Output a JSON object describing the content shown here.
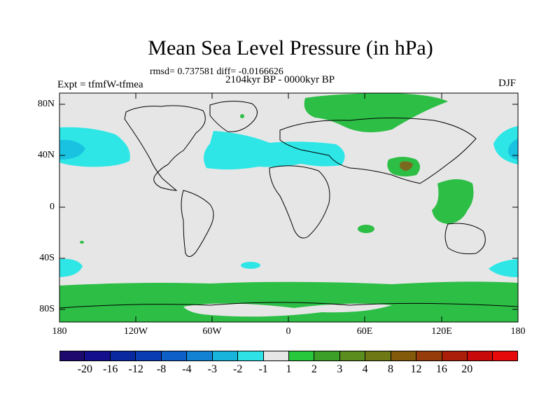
{
  "title": "Mean Sea Level Pressure (in hPa)",
  "stats": "rmsd= 0.737581 diff= -0.0166626",
  "period": "2104kyr BP - 0000kyr BP",
  "expt": "Expt = tfmfW-tfmea",
  "season": "DJF",
  "lat_labels": [
    "80N",
    "40N",
    "0",
    "40S",
    "80S"
  ],
  "lon_labels": [
    "180",
    "120W",
    "60W",
    "0",
    "60E",
    "120E",
    "180"
  ],
  "colorbar": {
    "colors": [
      "#1e0a6e",
      "#140f8c",
      "#0a28a0",
      "#0a3cb4",
      "#0f5fc8",
      "#1482d2",
      "#19b4dc",
      "#2de1e6",
      "#e6e6e6",
      "#28c83c",
      "#3ca028",
      "#5a8c1e",
      "#6e7814",
      "#825a0a",
      "#963c0a",
      "#aa1e0a",
      "#c80a0a",
      "#e60a0a"
    ],
    "labels": [
      "-20",
      "-16",
      "-12",
      "-8",
      "-4",
      "-3",
      "-2",
      "-1",
      "1",
      "2",
      "3",
      "4",
      "8",
      "12",
      "16",
      "20"
    ]
  },
  "colors": {
    "background": "#e6e6e6",
    "positive": "#2dbe46",
    "negative_light": "#2ee6e6",
    "negative_mid": "#19c2e0",
    "brown": "#7a6a20"
  }
}
